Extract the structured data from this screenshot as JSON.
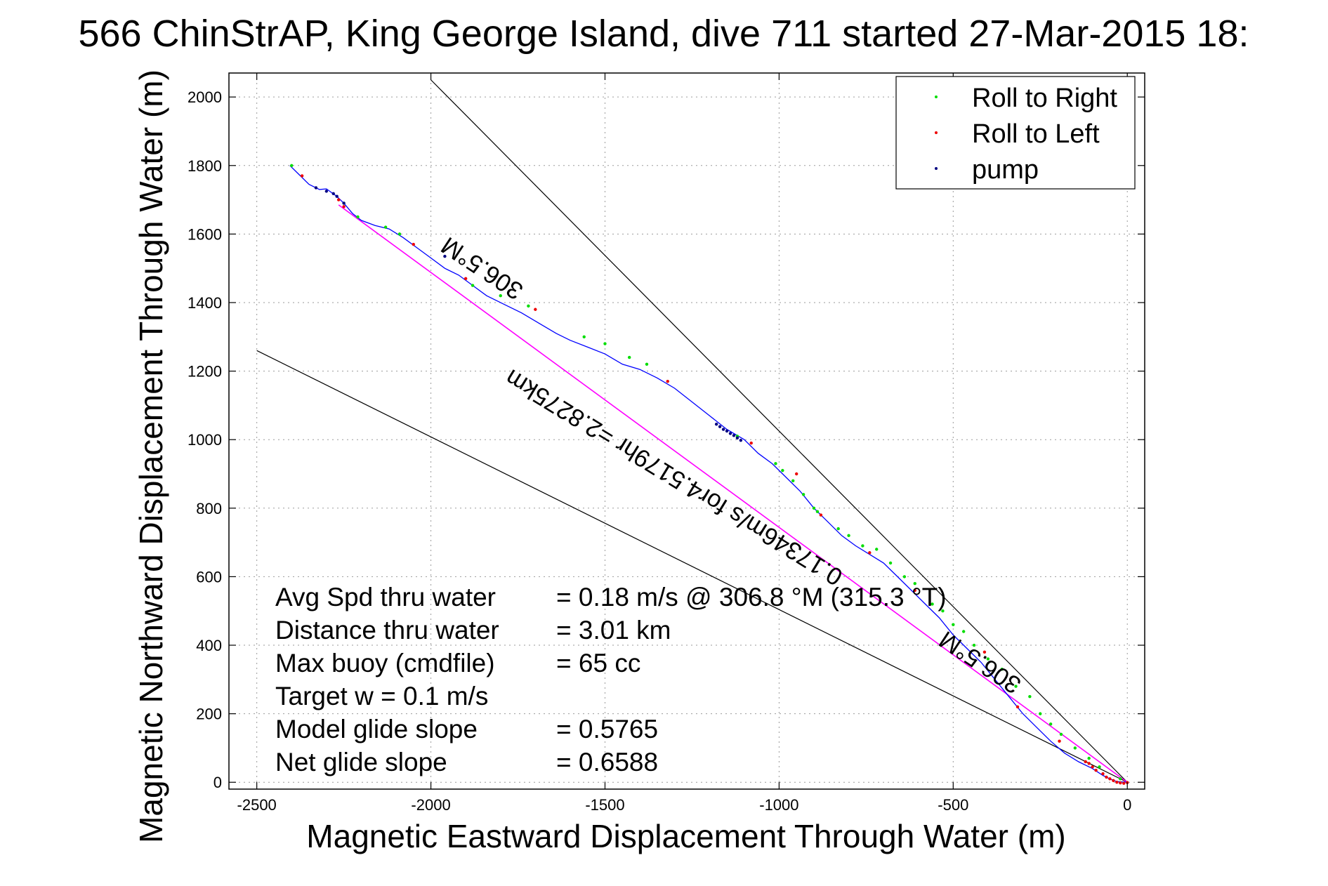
{
  "chart_data": {
    "type": "line",
    "title": "566 ChinStrAP, King George Island, dive 711 started 27-Mar-2015 18:",
    "xlabel": "Magnetic Eastward Displacement Through Water (m)",
    "ylabel": "Magnetic Northward Displacement Through Water (m)",
    "xlim": [
      -2580,
      50
    ],
    "ylim": [
      -20,
      2070
    ],
    "x_ticks": [
      -2500,
      -2000,
      -1500,
      -1000,
      -500,
      0
    ],
    "y_ticks": [
      0,
      200,
      400,
      600,
      800,
      1000,
      1200,
      1400,
      1600,
      1800,
      2000
    ],
    "grid": true,
    "legend_position": "top-right",
    "legend": [
      {
        "label": "Roll to Right",
        "color": "#00dd00"
      },
      {
        "label": "Roll to Left",
        "color": "#ee0000"
      },
      {
        "label": "pump",
        "color": "#000080"
      }
    ],
    "colors": {
      "track": "#0000ff",
      "fit_line": "#ff00ff",
      "cone": "#000000",
      "roll_right": "#00dd00",
      "roll_left": "#ee0000",
      "pump": "#000080"
    },
    "track": {
      "name": "",
      "x": [
        -2405,
        -2380,
        -2350,
        -2320,
        -2300,
        -2270,
        -2250,
        -2225,
        -2200,
        -2160,
        -2120,
        -2080,
        -2040,
        -2000,
        -1960,
        -1920,
        -1880,
        -1840,
        -1790,
        -1740,
        -1690,
        -1640,
        -1600,
        -1550,
        -1500,
        -1450,
        -1400,
        -1350,
        -1300,
        -1250,
        -1200,
        -1150,
        -1100,
        -1060,
        -1020,
        -980,
        -940,
        -900,
        -860,
        -820,
        -780,
        -740,
        -700,
        -660,
        -620,
        -580,
        -540,
        -500,
        -460,
        -420,
        -380,
        -340,
        -300,
        -260,
        -220,
        -180,
        -140,
        -100,
        -70,
        -50,
        -30,
        0
      ],
      "y": [
        1800,
        1775,
        1745,
        1730,
        1732,
        1710,
        1690,
        1660,
        1640,
        1625,
        1615,
        1590,
        1560,
        1530,
        1500,
        1480,
        1450,
        1420,
        1395,
        1370,
        1340,
        1310,
        1290,
        1270,
        1250,
        1220,
        1205,
        1180,
        1150,
        1110,
        1070,
        1030,
        1000,
        960,
        930,
        890,
        850,
        800,
        760,
        720,
        690,
        665,
        640,
        600,
        560,
        520,
        480,
        430,
        390,
        350,
        300,
        250,
        200,
        160,
        120,
        85,
        60,
        40,
        20,
        10,
        2,
        0
      ]
    },
    "roll_right": {
      "x": [
        -2400,
        -2250,
        -2210,
        -2130,
        -2090,
        -1880,
        -1800,
        -1720,
        -1560,
        -1500,
        -1430,
        -1380,
        -1120,
        -1010,
        -990,
        -960,
        -930,
        -900,
        -890,
        -830,
        -800,
        -760,
        -720,
        -680,
        -640,
        -610,
        -560,
        -530,
        -500,
        -470,
        -440,
        -400,
        -360,
        -320,
        -280,
        -250,
        -220,
        -190,
        -150,
        -110,
        -80,
        -20
      ],
      "y": [
        1800,
        1690,
        1650,
        1620,
        1600,
        1450,
        1420,
        1390,
        1300,
        1280,
        1240,
        1220,
        1010,
        930,
        910,
        880,
        840,
        800,
        790,
        740,
        720,
        690,
        680,
        640,
        600,
        580,
        520,
        500,
        460,
        440,
        400,
        360,
        330,
        280,
        250,
        200,
        170,
        140,
        100,
        70,
        45,
        10
      ]
    },
    "roll_left": {
      "x": [
        -2370,
        -2265,
        -2250,
        -2050,
        -1900,
        -1700,
        -1320,
        -1080,
        -950,
        -880,
        -740,
        -610,
        -410,
        -315,
        -195,
        -120,
        -110,
        -100,
        -90,
        -70,
        -60,
        -50,
        -40,
        -30,
        -20,
        -10,
        0
      ],
      "y": [
        1770,
        1700,
        1680,
        1570,
        1470,
        1380,
        1170,
        990,
        900,
        780,
        670,
        560,
        380,
        220,
        120,
        60,
        55,
        45,
        35,
        25,
        15,
        10,
        5,
        0,
        -2,
        -3,
        -1
      ],
      "series_color": "#ee0000"
    },
    "pump": {
      "x": [
        -2330,
        -2300,
        -2280,
        -2270,
        -2250,
        -1960,
        -1180,
        -1170,
        -1160,
        -1150,
        -1140,
        -1130,
        -1120,
        -1110
      ],
      "y": [
        1735,
        1725,
        1718,
        1710,
        1690,
        1535,
        1045,
        1038,
        1030,
        1025,
        1018,
        1012,
        1005,
        998
      ]
    },
    "fit_line": {
      "x": [
        -2265,
        0
      ],
      "y": [
        1685,
        0
      ]
    },
    "cone_lines": [
      {
        "x": [
          -2000,
          0
        ],
        "y": [
          2050,
          0
        ]
      },
      {
        "x": [
          -2500,
          0
        ],
        "y": [
          1260,
          0
        ]
      }
    ],
    "annotations": [
      {
        "text": "306.5°M",
        "anchor_x": -1840,
        "anchor_y": 1520
      },
      {
        "text": "306.5°M",
        "anchor_x": -410,
        "anchor_y": 370
      },
      {
        "text": "0.17346m/s for4.5179hr =2.8275km",
        "anchor_x": -1290,
        "anchor_y": 910
      }
    ],
    "stats": {
      "rows": [
        {
          "label": "Avg Spd thru water",
          "value": "=  0.18 m/s @ 306.8 °M (315.3 °T)"
        },
        {
          "label": "Distance thru water",
          "value": "=  3.01 km"
        },
        {
          "label": "Max buoy (cmdfile)",
          "value": "= 65 cc"
        },
        {
          "label": "Target w    = 0.1 m/s",
          "value": ""
        },
        {
          "label": "Model glide slope",
          "value": "= 0.5765"
        },
        {
          "label": "Net glide slope",
          "value": "= 0.6588"
        }
      ]
    }
  }
}
